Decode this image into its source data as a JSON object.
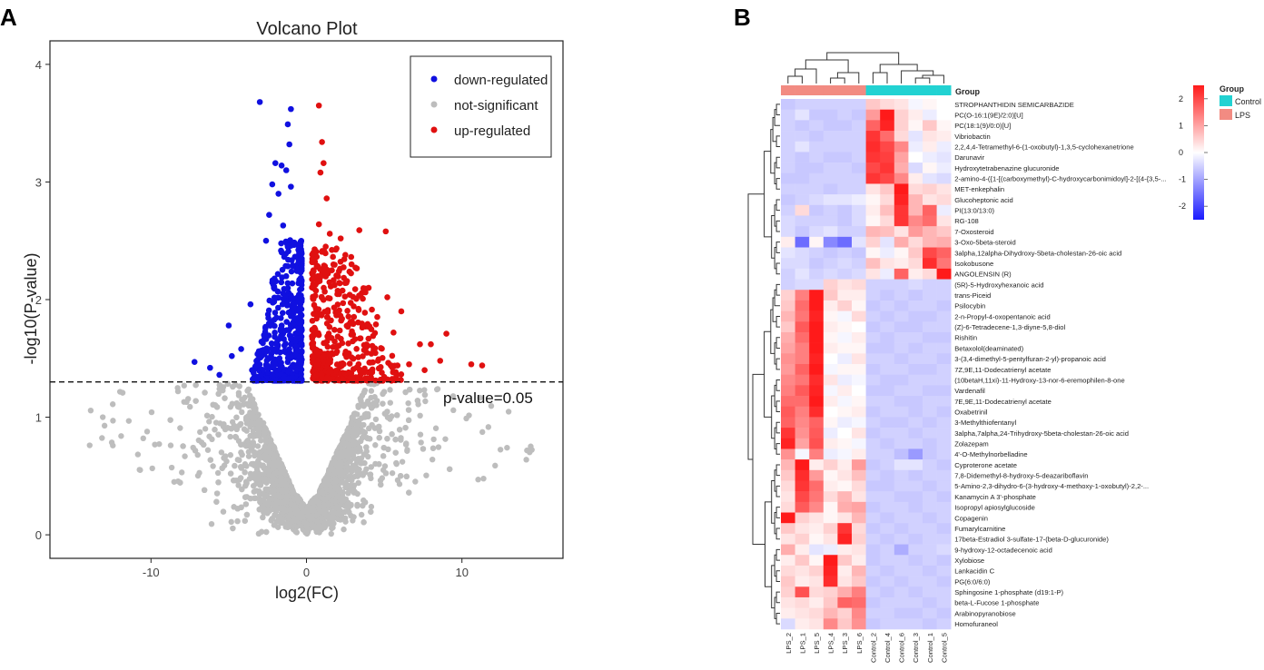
{
  "chart_data": [
    {
      "type": "scatter",
      "panel_label": "A",
      "title": "Volcano Plot",
      "xlabel": "log2(FC)",
      "ylabel": "-log10(P-value)",
      "xlim": [
        -16.5,
        16.5
      ],
      "ylim": [
        -0.2,
        4.2
      ],
      "x_ticks": [
        -10,
        0,
        10
      ],
      "y_ticks": [
        0,
        1,
        2,
        3,
        4
      ],
      "threshold": {
        "value": 1.3,
        "label": "p-value=0.05"
      },
      "grid": false,
      "legend_position": "top-right",
      "series": [
        {
          "name": "down-regulated",
          "color": "#1010e0"
        },
        {
          "name": "not-significant",
          "color": "#bdbdbd"
        },
        {
          "name": "up-regulated",
          "color": "#e01010"
        }
      ],
      "highlighted_points": {
        "down-regulated": [
          [
            -3.0,
            3.68
          ],
          [
            -1.0,
            3.62
          ],
          [
            -1.2,
            3.49
          ],
          [
            -1.1,
            3.32
          ],
          [
            -2.0,
            3.16
          ],
          [
            -1.6,
            3.14
          ],
          [
            -1.3,
            3.1
          ],
          [
            -2.2,
            2.98
          ],
          [
            -1.0,
            2.96
          ],
          [
            -1.8,
            2.9
          ],
          [
            -2.4,
            2.72
          ],
          [
            -1.5,
            2.63
          ],
          [
            -7.2,
            1.47
          ],
          [
            -6.2,
            1.42
          ],
          [
            -5.6,
            1.36
          ],
          [
            -4.8,
            1.52
          ],
          [
            -4.2,
            1.58
          ],
          [
            -5.0,
            1.78
          ],
          [
            -3.6,
            1.96
          ],
          [
            -2.6,
            2.5
          ],
          [
            -3.5,
            1.4
          ]
        ],
        "up-regulated": [
          [
            0.8,
            3.65
          ],
          [
            1.0,
            3.34
          ],
          [
            1.1,
            3.16
          ],
          [
            0.9,
            3.08
          ],
          [
            1.3,
            2.86
          ],
          [
            0.8,
            2.64
          ],
          [
            1.5,
            2.56
          ],
          [
            5.1,
            2.58
          ],
          [
            3.4,
            2.59
          ],
          [
            2.2,
            2.52
          ],
          [
            2.5,
            2.38
          ],
          [
            2.9,
            2.3
          ],
          [
            4.0,
            2.1
          ],
          [
            5.2,
            2.02
          ],
          [
            6.1,
            1.9
          ],
          [
            5.6,
            1.72
          ],
          [
            7.3,
            1.62
          ],
          [
            8.0,
            1.62
          ],
          [
            8.6,
            1.48
          ],
          [
            9.0,
            1.71
          ],
          [
            10.6,
            1.45
          ],
          [
            11.3,
            1.44
          ],
          [
            7.6,
            1.4
          ],
          [
            6.6,
            1.45
          ],
          [
            5.5,
            1.43
          ]
        ]
      },
      "not_significant_note": "dense cloud below the threshold"
    },
    {
      "type": "heatmap",
      "panel_label": "B",
      "legend_title": "Group",
      "group_row_label": "Group",
      "groups": [
        {
          "name": "Control",
          "color": "#22d2d2"
        },
        {
          "name": "LPS",
          "color": "#f28b82"
        }
      ],
      "color_scale": {
        "min": -2.5,
        "max": 2.5,
        "ticks": [
          2,
          1,
          0,
          -1,
          -2
        ],
        "low": "#1a1aff",
        "mid": "#ffffff",
        "high": "#ff1a1a"
      },
      "columns": [
        "LPS_2",
        "LPS_1",
        "LPS_5",
        "LPS_4",
        "LPS_3",
        "LPS_6",
        "Control_2",
        "Control_4",
        "Control_6",
        "Control_3",
        "Control_1",
        "Control_5"
      ],
      "column_groups": [
        "LPS",
        "LPS",
        "LPS",
        "LPS",
        "LPS",
        "LPS",
        "Control",
        "Control",
        "Control",
        "Control",
        "Control",
        "Control"
      ],
      "rows": [
        "STROPHANTHIDIN SEMICARBAZIDE",
        "PC(O-16:1(9E)/2:0)[U]",
        "PC(18:1(9)/0:0)[U]",
        "Vibriobactin",
        "2,2,4,4-Tetramethyl-6-(1-oxobutyl)-1,3,5-cyclohexanetrione",
        "Darunavir",
        "Hydroxytetrabenazine glucuronide",
        "2-amino-4-({1-[(carboxymethyl)-C-hydroxycarbonimidoyl]-2-[(4-{3,5-...",
        "MET-enkephalin",
        "Glucoheptonic acid",
        "PI(13:0/13:0)",
        "RG-108",
        "7-Oxosteroid",
        "3-Oxo-5beta-steroid",
        "3alpha,12alpha-Dihydroxy-5beta-cholestan-26-oic acid",
        "Isokobusone",
        "ANGOLENSIN (R)",
        "(5R)-5-Hydroxyhexanoic acid",
        "trans-Piceid",
        "Psilocybin",
        "2-n-Propyl-4-oxopentanoic acid",
        "(Z)-6-Tetradecene-1,3-diyne-5,8-diol",
        "Rishitin",
        "Betaxolol(deaminated)",
        "3-(3,4-dimethyl-5-pentylfuran-2-yl)-propanoic acid",
        "7Z,9E,11-Dodecatrienyl acetate",
        "(10betaH,11xi)-11-Hydroxy-13-nor-6-eremophilen-8-one",
        "Vardenafil",
        "7E,9E,11-Dodecatrienyl acetate",
        "Oxabetrinil",
        "3-Methylthiofentanyl",
        "3alpha,7alpha,24-Trihydroxy-5beta-cholestan-26-oic acid",
        "Zolazepam",
        "4'-O-Methylnorbelladine",
        "Cyproterone acetate",
        "7,8-Didemethyl-8-hydroxy-5-deazariboflavin",
        "5-Amino-2,3-dihydro-6-(3-hydroxy-4-methoxy-1-oxobutyl)-2,2-...",
        "Kanamycin A 3'-phosphate",
        "Isopropyl apiosylglucoside",
        "Copagenin",
        "Fumarylcarnitine",
        "17beta-Estradiol 3-sulfate-17-(beta-D-glucuronide)",
        "9-hydroxy-12-octadecenoic acid",
        "Xylobiose",
        "Lankacidin C",
        "PG(6:0/6:0)",
        "Sphingosine 1-phosphate (d19:1-P)",
        "beta-L-Fucose 1-phosphate",
        "Arabinopyranobiose",
        "Homofuraneol"
      ],
      "values": [
        [
          -0.6,
          -0.5,
          -0.5,
          -0.5,
          -0.5,
          -0.5,
          0.6,
          0.4,
          0.3,
          -0.1,
          0.1,
          0.0
        ],
        [
          -0.5,
          -0.3,
          -0.6,
          -0.6,
          -0.5,
          -0.6,
          1.1,
          2.6,
          0.5,
          0.2,
          -0.2,
          0.0
        ],
        [
          -0.5,
          -0.6,
          -0.5,
          -0.6,
          -0.6,
          -0.5,
          1.7,
          2.4,
          0.5,
          0.1,
          0.6,
          0.1
        ],
        [
          -0.5,
          -0.5,
          -0.6,
          -0.5,
          -0.5,
          -0.5,
          2.2,
          1.6,
          0.4,
          -0.3,
          0.3,
          0.2
        ],
        [
          -0.5,
          -0.3,
          -0.5,
          -0.5,
          -0.5,
          -0.5,
          2.3,
          2.0,
          1.3,
          -0.2,
          0.2,
          -0.2
        ],
        [
          -0.5,
          -0.6,
          -0.5,
          -0.6,
          -0.6,
          -0.5,
          2.2,
          2.1,
          1.0,
          0.0,
          -0.2,
          -0.3
        ],
        [
          -0.5,
          -0.6,
          -0.6,
          -0.5,
          -0.5,
          -0.6,
          2.0,
          2.2,
          0.9,
          -0.4,
          0.1,
          -0.2
        ],
        [
          -0.6,
          -0.6,
          -0.5,
          -0.5,
          -0.5,
          -0.5,
          2.2,
          2.0,
          1.3,
          0.2,
          -0.3,
          -0.4
        ],
        [
          -0.5,
          -0.5,
          -0.5,
          -0.6,
          -0.5,
          -0.5,
          0.3,
          0.6,
          2.6,
          0.4,
          0.5,
          0.3
        ],
        [
          -0.6,
          -0.5,
          -0.4,
          -0.3,
          -0.3,
          -0.2,
          0.1,
          0.4,
          2.4,
          0.8,
          0.3,
          0.4
        ],
        [
          -0.5,
          0.4,
          -0.6,
          -0.5,
          -0.6,
          -0.4,
          0.2,
          0.7,
          2.2,
          0.8,
          1.7,
          -0.2
        ],
        [
          -0.4,
          -0.5,
          -0.5,
          -0.5,
          -0.6,
          -0.4,
          0.1,
          0.4,
          2.2,
          1.3,
          1.6,
          0.3
        ],
        [
          -0.4,
          -0.6,
          -0.4,
          -0.3,
          -0.5,
          -0.5,
          0.8,
          0.7,
          0.3,
          1.1,
          0.8,
          0.6
        ],
        [
          0.2,
          -1.6,
          0.1,
          -1.3,
          -1.6,
          -0.3,
          0.5,
          -0.3,
          0.9,
          0.4,
          0.8,
          0.9
        ],
        [
          -0.3,
          -0.4,
          -0.5,
          -0.6,
          -0.5,
          -0.6,
          0.1,
          -0.2,
          0.1,
          0.6,
          2.0,
          1.7
        ],
        [
          -0.4,
          -0.4,
          -0.6,
          -0.5,
          -0.4,
          -0.5,
          0.7,
          0.3,
          0.2,
          0.4,
          2.3,
          1.5
        ],
        [
          -0.5,
          -0.3,
          -0.5,
          -0.4,
          -0.5,
          -0.4,
          0.3,
          -0.2,
          1.7,
          0.2,
          0.4,
          2.6
        ],
        [
          -0.5,
          -0.4,
          -0.4,
          0.5,
          0.3,
          0.4,
          -0.5,
          -0.5,
          -0.5,
          -0.4,
          -0.5,
          -0.5
        ],
        [
          0.5,
          1.4,
          2.5,
          0.6,
          0.2,
          0.2,
          -0.5,
          -0.6,
          -0.5,
          -0.6,
          -0.5,
          -0.5
        ],
        [
          0.6,
          1.6,
          2.6,
          0.2,
          0.5,
          0.1,
          -0.6,
          -0.5,
          -0.6,
          -0.5,
          -0.5,
          -0.6
        ],
        [
          0.8,
          1.5,
          2.4,
          0.1,
          -0.1,
          0.4,
          -0.5,
          -0.6,
          -0.5,
          -0.6,
          -0.6,
          -0.5
        ],
        [
          0.6,
          1.8,
          2.5,
          0.2,
          0.1,
          0.0,
          -0.6,
          -0.5,
          -0.6,
          -0.6,
          -0.5,
          -0.5
        ],
        [
          0.9,
          1.6,
          2.6,
          0.1,
          -0.1,
          0.2,
          -0.5,
          -0.6,
          -0.5,
          -0.5,
          -0.6,
          -0.6
        ],
        [
          1.0,
          1.4,
          2.5,
          0.2,
          0.1,
          0.1,
          -0.6,
          -0.6,
          -0.5,
          -0.6,
          -0.5,
          -0.5
        ],
        [
          1.2,
          1.4,
          2.4,
          0.0,
          -0.2,
          0.3,
          -0.5,
          -0.5,
          -0.6,
          -0.5,
          -0.5,
          -0.6
        ],
        [
          1.1,
          1.7,
          2.5,
          -0.1,
          0.1,
          0.1,
          -0.6,
          -0.5,
          -0.5,
          -0.6,
          -0.6,
          -0.5
        ],
        [
          1.3,
          1.5,
          2.3,
          0.3,
          -0.2,
          -0.1,
          -0.5,
          -0.6,
          -0.6,
          -0.5,
          -0.5,
          -0.5
        ],
        [
          1.4,
          1.8,
          2.4,
          -0.1,
          0.2,
          0.0,
          -0.6,
          -0.6,
          -0.5,
          -0.5,
          -0.6,
          -0.6
        ],
        [
          1.6,
          1.6,
          2.5,
          0.2,
          -0.1,
          0.1,
          -0.5,
          -0.5,
          -0.6,
          -0.6,
          -0.5,
          -0.5
        ],
        [
          1.8,
          1.4,
          2.3,
          0.0,
          0.1,
          0.2,
          -0.6,
          -0.5,
          -0.5,
          -0.6,
          -0.5,
          -0.6
        ],
        [
          1.7,
          1.3,
          1.7,
          0.1,
          -0.2,
          -0.1,
          -0.5,
          -0.6,
          -0.6,
          -0.5,
          -0.6,
          -0.5
        ],
        [
          2.2,
          1.2,
          1.8,
          -0.2,
          0.0,
          0.3,
          -0.6,
          -0.5,
          -0.5,
          -0.6,
          -0.5,
          -0.5
        ],
        [
          2.4,
          1.0,
          1.9,
          0.2,
          0.1,
          -0.1,
          -0.5,
          -0.6,
          -0.5,
          -0.5,
          -0.6,
          -0.5
        ],
        [
          1.2,
          -0.1,
          1.4,
          -0.2,
          -0.1,
          0.2,
          -0.5,
          -0.5,
          -0.7,
          -1.1,
          -0.6,
          -0.5
        ],
        [
          0.8,
          2.5,
          0.2,
          0.5,
          0.2,
          1.1,
          -0.6,
          -0.5,
          -0.3,
          -0.3,
          -0.5,
          -0.6
        ],
        [
          0.6,
          2.3,
          1.1,
          0.1,
          0.3,
          0.7,
          -0.5,
          -0.6,
          -0.5,
          -0.6,
          -0.5,
          -0.5
        ],
        [
          0.4,
          2.2,
          1.6,
          0.2,
          0.1,
          0.4,
          -0.6,
          -0.6,
          -0.5,
          -0.5,
          -0.6,
          -0.5
        ],
        [
          0.3,
          2.0,
          1.5,
          0.4,
          0.8,
          0.3,
          -0.5,
          -0.5,
          -0.6,
          -0.6,
          -0.5,
          -0.6
        ],
        [
          0.4,
          1.8,
          1.3,
          0.1,
          0.9,
          1.0,
          -0.6,
          -0.5,
          -0.5,
          -0.6,
          -0.5,
          -0.5
        ],
        [
          2.6,
          0.5,
          0.3,
          0.1,
          0.3,
          0.8,
          -0.5,
          -0.6,
          -0.5,
          -0.5,
          -0.6,
          -0.5
        ],
        [
          0.6,
          0.3,
          0.2,
          0.5,
          2.2,
          0.4,
          -0.6,
          -0.5,
          -0.6,
          -0.5,
          -0.5,
          -0.6
        ],
        [
          0.3,
          0.5,
          0.1,
          0.3,
          2.4,
          0.5,
          -0.5,
          -0.6,
          -0.5,
          -0.6,
          -0.5,
          -0.5
        ],
        [
          0.9,
          0.2,
          -0.3,
          -0.2,
          0.2,
          0.3,
          -0.6,
          -0.5,
          -0.9,
          -0.5,
          -0.5,
          -0.4
        ],
        [
          0.2,
          0.6,
          0.1,
          2.5,
          0.6,
          0.2,
          -0.6,
          -0.5,
          -0.5,
          -0.6,
          -0.5,
          -0.6
        ],
        [
          0.4,
          0.3,
          0.5,
          2.4,
          0.2,
          0.8,
          -0.5,
          -0.6,
          -0.5,
          -0.5,
          -0.6,
          -0.5
        ],
        [
          0.6,
          0.2,
          0.3,
          2.3,
          0.3,
          0.6,
          -0.6,
          -0.5,
          -0.6,
          -0.5,
          -0.5,
          -0.6
        ],
        [
          0.5,
          1.9,
          0.4,
          0.5,
          0.9,
          1.4,
          -0.5,
          -0.6,
          -0.5,
          -0.6,
          -0.5,
          -0.5
        ],
        [
          0.3,
          0.4,
          0.2,
          0.6,
          1.7,
          1.6,
          -0.6,
          -0.5,
          -0.5,
          -0.5,
          -0.6,
          -0.5
        ],
        [
          0.2,
          0.3,
          0.4,
          0.8,
          0.5,
          1.3,
          -0.5,
          -0.5,
          -0.6,
          -0.6,
          -0.5,
          -0.6
        ],
        [
          -0.4,
          0.2,
          0.3,
          1.3,
          0.6,
          1.2,
          -0.6,
          -0.5,
          -0.5,
          -0.5,
          -0.6,
          -0.5
        ]
      ]
    }
  ]
}
